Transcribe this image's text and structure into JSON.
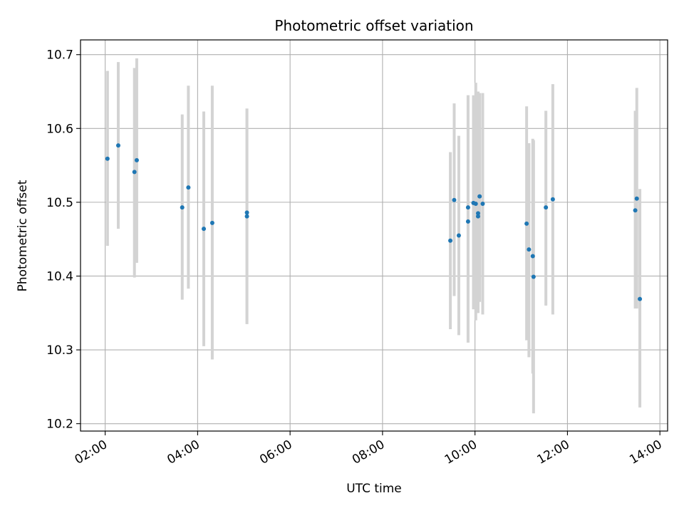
{
  "chart_data": {
    "type": "scatter",
    "title": "Photometric offset variation",
    "xlabel": "UTC time",
    "ylabel": "Photometric offset",
    "x_axis": {
      "kind": "time",
      "xlim": [
        "01:28",
        "14:10"
      ],
      "ticks": [
        "02:00",
        "04:00",
        "06:00",
        "08:00",
        "10:00",
        "12:00",
        "14:00"
      ]
    },
    "y_axis": {
      "ylim": [
        10.19,
        10.72
      ],
      "ticks": [
        "10.2",
        "10.3",
        "10.4",
        "10.5",
        "10.6",
        "10.7"
      ]
    },
    "grid": true,
    "colors": {
      "points": "#1f77b4",
      "errorbars": "#d3d3d3",
      "grid": "#b0b0b0",
      "axes": "#000000"
    },
    "series": [
      {
        "points": [
          {
            "x": "02:03",
            "y": 10.559,
            "yerr": [
              10.441,
              10.678
            ]
          },
          {
            "x": "02:17",
            "y": 10.577,
            "yerr": [
              10.464,
              10.69
            ]
          },
          {
            "x": "02:38",
            "y": 10.541,
            "yerr": [
              10.398,
              10.682
            ]
          },
          {
            "x": "02:41",
            "y": 10.557,
            "yerr": [
              10.418,
              10.695
            ]
          },
          {
            "x": "03:40",
            "y": 10.493,
            "yerr": [
              10.368,
              10.619
            ]
          },
          {
            "x": "03:48",
            "y": 10.52,
            "yerr": [
              10.383,
              10.658
            ]
          },
          {
            "x": "04:08",
            "y": 10.464,
            "yerr": [
              10.305,
              10.623
            ]
          },
          {
            "x": "04:19",
            "y": 10.472,
            "yerr": [
              10.287,
              10.658
            ]
          },
          {
            "x": "05:04",
            "y": 10.486,
            "yerr": [
              10.335,
              10.627
            ]
          },
          {
            "x": "05:04",
            "y": 10.481,
            "yerr": [
              10.335,
              10.627
            ]
          },
          {
            "x": "09:28",
            "y": 10.448,
            "yerr": [
              10.328,
              10.568
            ]
          },
          {
            "x": "09:33",
            "y": 10.503,
            "yerr": [
              10.373,
              10.634
            ]
          },
          {
            "x": "09:39",
            "y": 10.455,
            "yerr": [
              10.32,
              10.59
            ]
          },
          {
            "x": "09:51",
            "y": 10.493,
            "yerr": [
              10.31,
              10.645
            ]
          },
          {
            "x": "09:51",
            "y": 10.474,
            "yerr": [
              10.31,
              10.645
            ]
          },
          {
            "x": "09:58",
            "y": 10.499,
            "yerr": [
              10.355,
              10.645
            ]
          },
          {
            "x": "10:01",
            "y": 10.498,
            "yerr": [
              10.34,
              10.662
            ]
          },
          {
            "x": "10:04",
            "y": 10.485,
            "yerr": [
              10.35,
              10.65
            ]
          },
          {
            "x": "10:04",
            "y": 10.481,
            "yerr": [
              10.35,
              10.65
            ]
          },
          {
            "x": "10:06",
            "y": 10.508,
            "yerr": [
              10.365,
              10.648
            ]
          },
          {
            "x": "10:10",
            "y": 10.498,
            "yerr": [
              10.348,
              10.648
            ]
          },
          {
            "x": "11:07",
            "y": 10.471,
            "yerr": [
              10.313,
              10.63
            ]
          },
          {
            "x": "11:10",
            "y": 10.436,
            "yerr": [
              10.29,
              10.58
            ]
          },
          {
            "x": "11:15",
            "y": 10.427,
            "yerr": [
              10.268,
              10.586
            ]
          },
          {
            "x": "11:16",
            "y": 10.399,
            "yerr": [
              10.214,
              10.584
            ]
          },
          {
            "x": "11:32",
            "y": 10.493,
            "yerr": [
              10.36,
              10.624
            ]
          },
          {
            "x": "11:41",
            "y": 10.504,
            "yerr": [
              10.348,
              10.66
            ]
          },
          {
            "x": "13:28",
            "y": 10.489,
            "yerr": [
              10.356,
              10.624
            ]
          },
          {
            "x": "13:30",
            "y": 10.505,
            "yerr": [
              10.356,
              10.655
            ]
          },
          {
            "x": "13:34",
            "y": 10.369,
            "yerr": [
              10.222,
              10.518
            ]
          }
        ]
      }
    ]
  }
}
